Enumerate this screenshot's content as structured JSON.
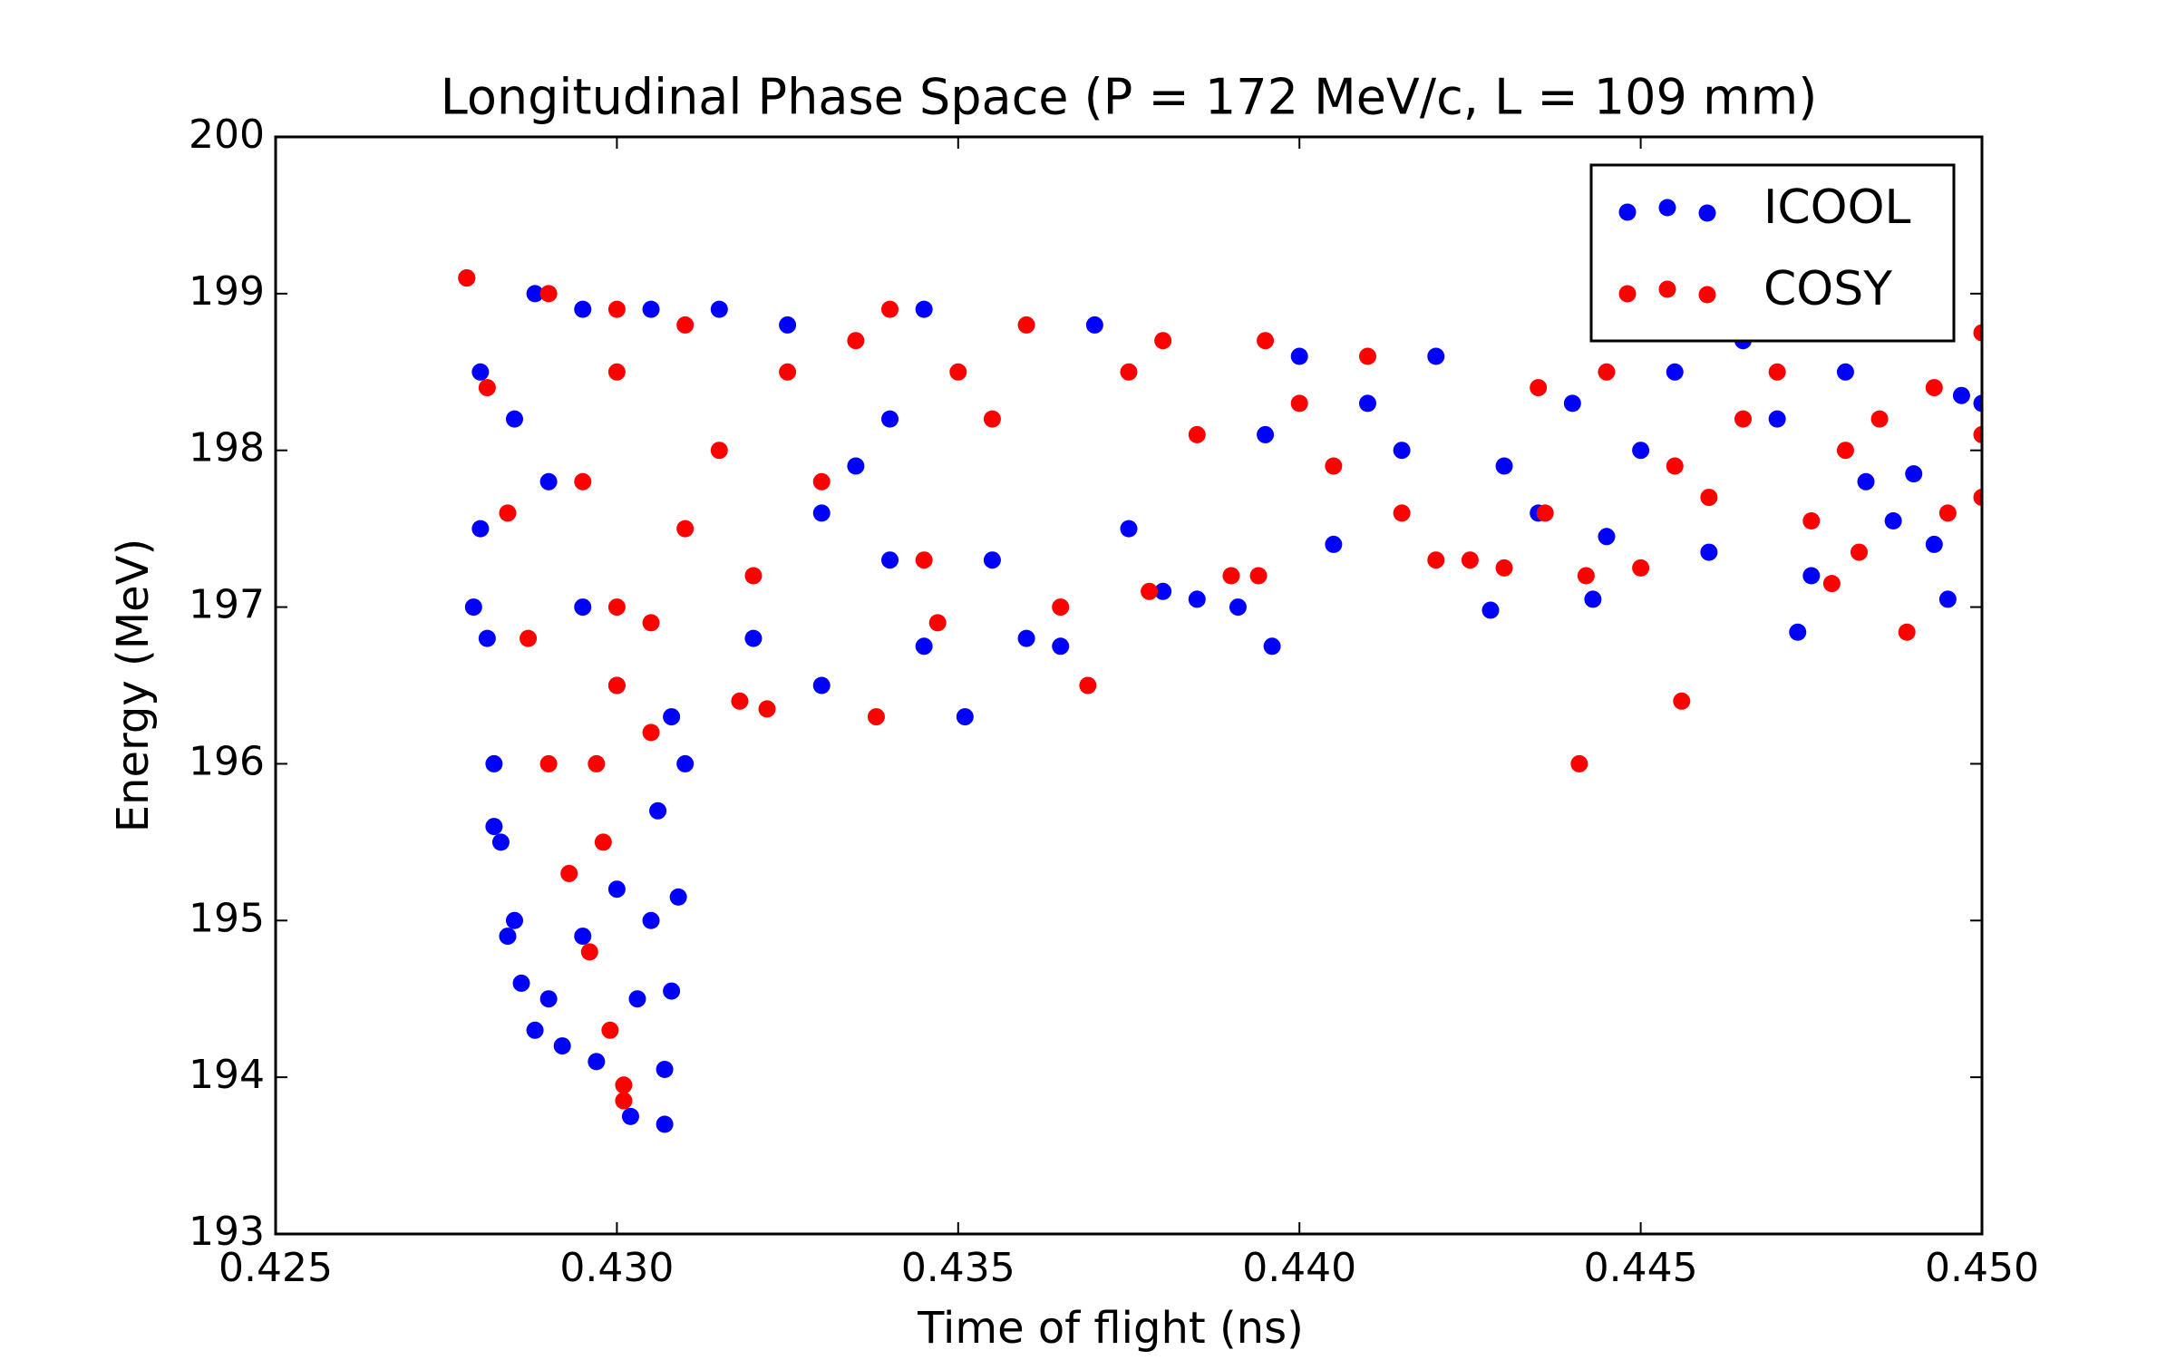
{
  "chart_data": {
    "type": "scatter",
    "title": "Longitudinal Phase Space (P = 172 MeV/c, L = 109 mm)",
    "x_label": "Time of flight (ns)",
    "y_label": "Energy (MeV)",
    "xlim": [
      0.425,
      0.45
    ],
    "ylim": [
      193,
      200
    ],
    "xticks": [
      0.425,
      {
        "value": 0.43,
        "label": "0.430"
      },
      0.435,
      {
        "value": 0.44,
        "label": "0.440"
      },
      0.445,
      {
        "value": 0.45,
        "label": "0.450"
      }
    ],
    "yticks": [
      193,
      194,
      195,
      196,
      197,
      198,
      199,
      200
    ],
    "legend": "upper right",
    "series": [
      {
        "name": "ICOOL",
        "color": "#0000ff",
        "x": [
          0.4278,
          0.428,
          0.428,
          0.4281,
          0.4282,
          0.4283,
          0.4285,
          0.4286,
          0.4288,
          0.429,
          0.4292,
          0.4295,
          0.4297,
          0.43,
          0.4302,
          0.4303,
          0.4305,
          0.4307,
          0.4307,
          0.4308,
          0.4309,
          0.4306,
          0.431,
          0.4308,
          0.43,
          0.4295,
          0.429,
          0.4285,
          0.4288,
          0.4295,
          0.4305,
          0.4315,
          0.4325,
          0.4279,
          0.4282,
          0.4284,
          0.433,
          0.4335,
          0.434,
          0.4345,
          0.4351,
          0.4345,
          0.4355,
          0.436,
          0.4365,
          0.437,
          0.4375,
          0.438,
          0.4385,
          0.4391,
          0.4396,
          0.4395,
          0.44,
          0.4405,
          0.441,
          0.4415,
          0.442,
          0.4428,
          0.443,
          0.4435,
          0.444,
          0.4443,
          0.4445,
          0.445,
          0.4455,
          0.446,
          0.4465,
          0.447,
          0.4473,
          0.4475,
          0.448,
          0.4483,
          0.4487,
          0.449,
          0.4493,
          0.4495,
          0.4497,
          0.45,
          0.433,
          0.432,
          0.434
        ],
        "values": [
          199.1,
          198.5,
          197.5,
          196.8,
          196.0,
          195.5,
          195.0,
          194.6,
          194.3,
          194.5,
          194.2,
          194.9,
          194.1,
          195.2,
          193.75,
          194.5,
          195.0,
          193.7,
          194.05,
          194.55,
          195.15,
          195.7,
          196.0,
          196.3,
          196.5,
          197.0,
          197.8,
          198.2,
          199.0,
          198.9,
          198.9,
          198.9,
          198.8,
          197.0,
          195.6,
          194.9,
          197.6,
          197.9,
          198.2,
          198.9,
          196.3,
          196.75,
          197.3,
          196.8,
          196.75,
          198.8,
          197.5,
          197.1,
          197.05,
          197.0,
          196.75,
          198.1,
          198.6,
          197.4,
          198.3,
          198.0,
          198.6,
          196.98,
          197.9,
          197.6,
          198.3,
          197.05,
          197.45,
          198.0,
          198.5,
          197.35,
          198.7,
          198.2,
          196.84,
          197.2,
          198.5,
          197.8,
          197.55,
          197.85,
          197.4,
          197.05,
          198.35,
          198.3,
          196.5,
          196.8,
          197.3
        ]
      },
      {
        "name": "COSY",
        "color": "#ff0000",
        "x": [
          0.4278,
          0.4281,
          0.4284,
          0.4287,
          0.429,
          0.4293,
          0.4296,
          0.4299,
          0.4301,
          0.4301,
          0.4298,
          0.4297,
          0.43,
          0.4305,
          0.43,
          0.4295,
          0.43,
          0.429,
          0.43,
          0.431,
          0.4305,
          0.431,
          0.4315,
          0.432,
          0.4318,
          0.4322,
          0.4325,
          0.433,
          0.4335,
          0.4338,
          0.434,
          0.4345,
          0.4347,
          0.435,
          0.4355,
          0.436,
          0.4365,
          0.4369,
          0.4375,
          0.4378,
          0.438,
          0.4385,
          0.439,
          0.4394,
          0.4395,
          0.44,
          0.4405,
          0.441,
          0.4415,
          0.442,
          0.4425,
          0.443,
          0.4435,
          0.4436,
          0.4441,
          0.4442,
          0.4445,
          0.445,
          0.4455,
          0.4456,
          0.446,
          0.4465,
          0.447,
          0.4475,
          0.4478,
          0.448,
          0.4482,
          0.4485,
          0.4489,
          0.4493,
          0.4495,
          0.45,
          0.45,
          0.45
        ],
        "values": [
          199.1,
          198.4,
          197.6,
          196.8,
          196.0,
          195.3,
          194.8,
          194.3,
          193.95,
          193.85,
          195.5,
          196.0,
          196.5,
          196.2,
          197.0,
          197.8,
          198.5,
          199.0,
          198.9,
          198.8,
          196.9,
          197.5,
          198.0,
          197.2,
          196.4,
          196.35,
          198.5,
          197.8,
          198.7,
          196.3,
          198.9,
          197.3,
          196.9,
          198.5,
          198.2,
          198.8,
          197.0,
          196.5,
          198.5,
          197.1,
          198.7,
          198.1,
          197.2,
          197.2,
          198.7,
          198.3,
          197.9,
          198.6,
          197.6,
          197.3,
          197.3,
          197.25,
          198.4,
          197.6,
          196.0,
          197.2,
          198.5,
          197.25,
          197.9,
          196.4,
          197.7,
          198.2,
          198.5,
          197.55,
          197.15,
          198.0,
          197.35,
          198.2,
          196.84,
          198.4,
          197.6,
          198.75,
          197.7,
          198.1
        ]
      }
    ]
  }
}
